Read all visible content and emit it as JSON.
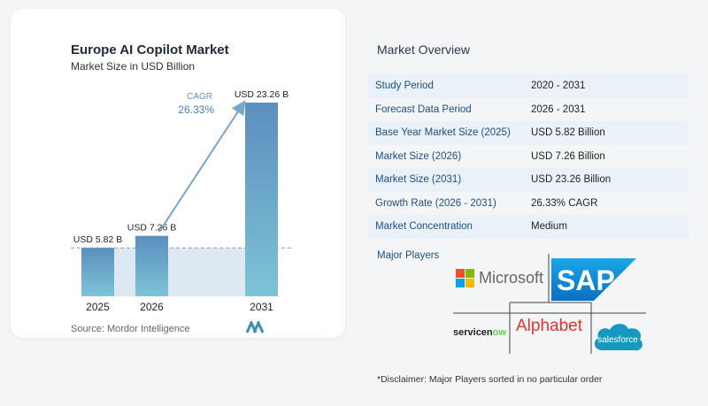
{
  "chart_data": {
    "type": "bar",
    "title": "Europe AI Copilot Market",
    "subtitle": "Market Size in USD Billion",
    "categories": [
      "2025",
      "2026",
      "2031"
    ],
    "values": [
      5.82,
      7.26,
      23.26
    ],
    "value_labels": [
      "USD 5.82 B",
      "USD 7.26 B",
      "USD 23.26 B"
    ],
    "cagr_label": "CAGR",
    "cagr_value": "26.33%",
    "ylim": [
      0,
      23.26
    ],
    "grid": false,
    "bar_color_top": "#5b8fbf",
    "bar_color_bottom": "#7ec3d6",
    "band_color": "#dde8f2"
  },
  "source": "Source:  Mordor Intelligence",
  "overview": {
    "title": "Market Overview",
    "rows": [
      {
        "key": "Study Period",
        "value": "2020 - 2031"
      },
      {
        "key": "Forecast Data Period",
        "value": "2026 - 2031"
      },
      {
        "key": "Base Year Market Size (2025)",
        "value": "USD 5.82 Billion"
      },
      {
        "key": "Market Size (2026)",
        "value": "USD 7.26 Billion"
      },
      {
        "key": "Market Size (2031)",
        "value": "USD 23.26 Billion"
      },
      {
        "key": "Growth Rate (2026 - 2031)",
        "value": "26.33% CAGR"
      },
      {
        "key": "Market Concentration",
        "value": "Medium"
      }
    ],
    "major_players_label": "Major Players",
    "players": [
      "Microsoft",
      "SAP",
      "servicenow",
      "Alphabet",
      "salesforce"
    ],
    "disclaimer": "*Disclaimer: Major Players sorted in no particular order"
  }
}
